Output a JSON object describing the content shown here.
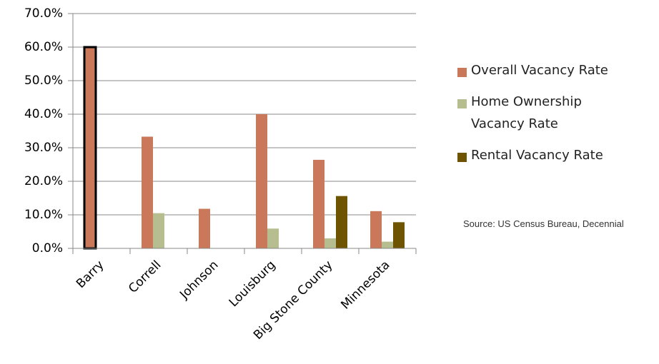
{
  "chart_data": {
    "type": "bar",
    "categories": [
      "Barry",
      "Correll",
      "Johnson",
      "Louisburg",
      "Big Stone County",
      "Minnesota"
    ],
    "series": [
      {
        "name": "Overall Vacancy Rate",
        "color": "#c9785a",
        "values": [
          60.0,
          33.3,
          11.8,
          40.0,
          26.4,
          11.1
        ]
      },
      {
        "name": "Home Ownership Vacancy Rate",
        "color": "#b6bd8f",
        "values": [
          0,
          10.5,
          0,
          5.9,
          3.0,
          2.0
        ]
      },
      {
        "name": "Rental Vacancy Rate",
        "color": "#6e5300",
        "values": [
          0,
          0,
          0,
          0,
          15.6,
          7.8
        ]
      }
    ],
    "ylim": [
      0,
      70
    ],
    "yticks": [
      {
        "value": 0,
        "label": "0.0%"
      },
      {
        "value": 10,
        "label": "10.0%"
      },
      {
        "value": 20,
        "label": "20.0%"
      },
      {
        "value": 30,
        "label": "30.0%"
      },
      {
        "value": 40,
        "label": "40.0%"
      },
      {
        "value": 50,
        "label": "50.0%"
      },
      {
        "value": 60,
        "label": "60.0%"
      },
      {
        "value": 70,
        "label": "70.0%"
      }
    ],
    "grid": true,
    "legend": "right",
    "annotations": [
      "Source: US Census Bureau, Decennial"
    ]
  }
}
